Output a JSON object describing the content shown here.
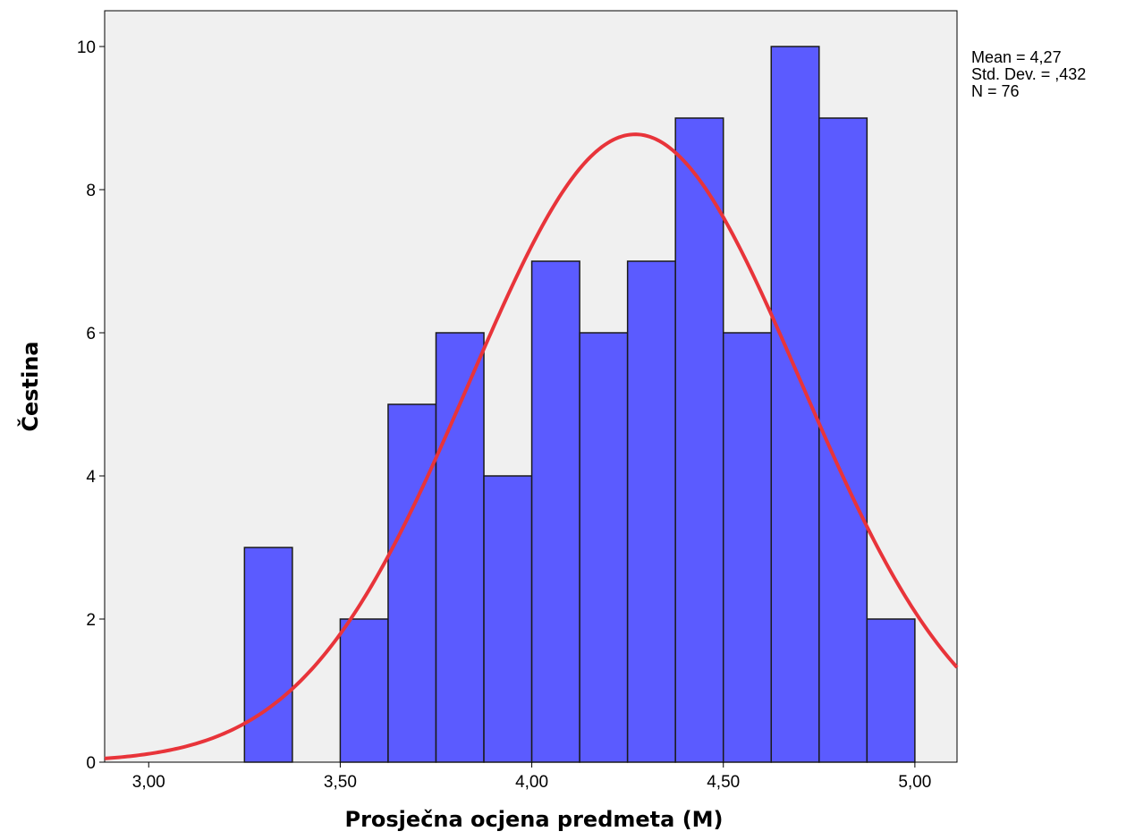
{
  "chart_data": {
    "type": "bar",
    "subtype": "histogram",
    "xlabel": "Prosječna ocjena predmeta (M)",
    "ylabel": "Čestina",
    "xlim": [
      2.885,
      5.11
    ],
    "ylim": [
      0,
      10.5
    ],
    "x_ticks": [
      3.0,
      3.5,
      4.0,
      4.5,
      5.0
    ],
    "x_tick_labels": [
      "3,00",
      "3,50",
      "4,00",
      "4,50",
      "5,00"
    ],
    "y_ticks": [
      0,
      2,
      4,
      6,
      8,
      10
    ],
    "y_tick_labels": [
      "0",
      "2",
      "4",
      "6",
      "8",
      "10"
    ],
    "bin_width": 0.125,
    "bins": [
      {
        "start": 3.25,
        "end": 3.375,
        "count": 3
      },
      {
        "start": 3.5,
        "end": 3.625,
        "count": 2
      },
      {
        "start": 3.625,
        "end": 3.75,
        "count": 5
      },
      {
        "start": 3.75,
        "end": 3.875,
        "count": 6
      },
      {
        "start": 3.875,
        "end": 4.0,
        "count": 4
      },
      {
        "start": 4.0,
        "end": 4.125,
        "count": 7
      },
      {
        "start": 4.125,
        "end": 4.25,
        "count": 6
      },
      {
        "start": 4.25,
        "end": 4.375,
        "count": 7
      },
      {
        "start": 4.375,
        "end": 4.5,
        "count": 9
      },
      {
        "start": 4.5,
        "end": 4.625,
        "count": 6
      },
      {
        "start": 4.625,
        "end": 4.75,
        "count": 10
      },
      {
        "start": 4.75,
        "end": 4.875,
        "count": 9
      },
      {
        "start": 4.875,
        "end": 5.0,
        "count": 2
      }
    ],
    "normal_curve": {
      "mean": 4.27,
      "sd": 0.432,
      "n": 76
    },
    "stats": {
      "mean": "Mean = 4,27",
      "sd": "Std. Dev. = ,432",
      "n": "N = 76"
    },
    "grid": false,
    "colors": {
      "bar_fill": "#5b5bff",
      "bar_stroke": "#1a1a1a",
      "curve": "#e8343a",
      "plot_background": "#f0f0f0"
    }
  }
}
